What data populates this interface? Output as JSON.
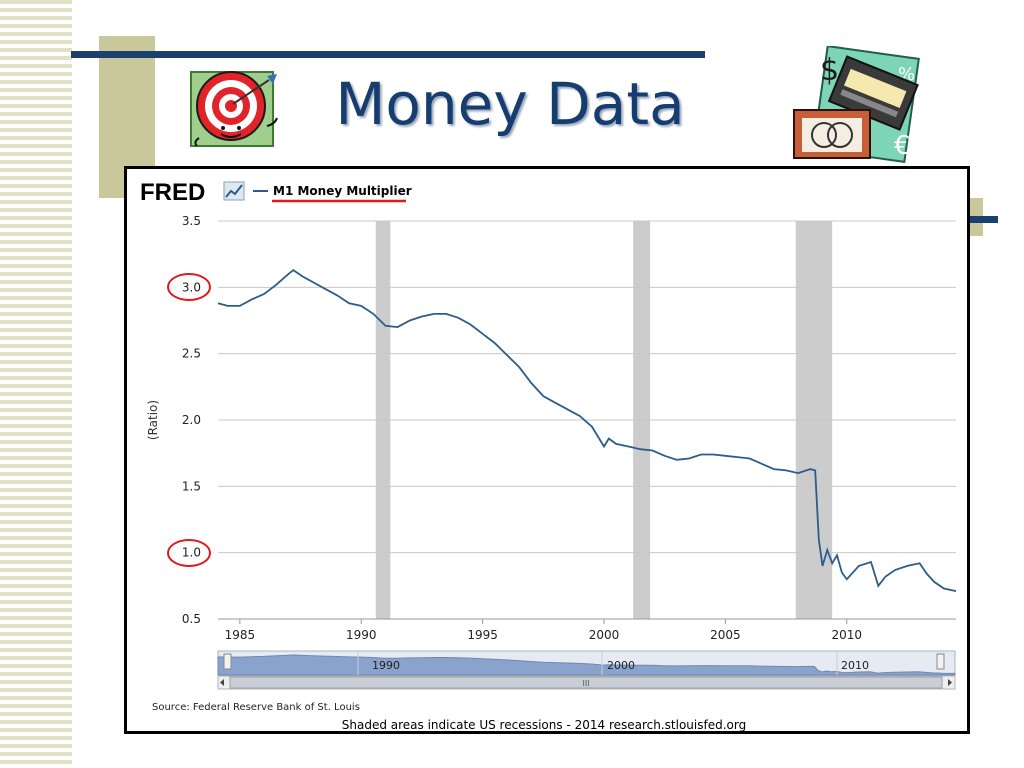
{
  "slide": {
    "title": "Money Data",
    "decorations": [
      "target-clipart-icon",
      "money-cards-clipart-icon"
    ],
    "colors": {
      "title": "#163d6f",
      "accent_rule": "#1b3f6e",
      "olive": "#c9c89b"
    }
  },
  "chart_data": {
    "type": "line",
    "logo": "FRED",
    "legend": [
      "M1 Money Multiplier"
    ],
    "ylabel": "(Ratio)",
    "ylim": [
      0.5,
      3.5
    ],
    "xlim": [
      1984.1,
      2014.5
    ],
    "y_ticks": [
      "3.5",
      "3.0",
      "2.5",
      "2.0",
      "1.5",
      "1.0",
      "0.5"
    ],
    "x_ticks": [
      "1985",
      "1990",
      "1995",
      "2000",
      "2005",
      "2010"
    ],
    "grid": true,
    "line_color": "#2e5c8a",
    "recession_shading": [
      [
        1990.6,
        1991.2
      ],
      [
        2001.2,
        2001.9
      ],
      [
        2007.9,
        2009.4
      ]
    ],
    "series": [
      {
        "x": [
          1984.1,
          1984.5,
          1985.0,
          1985.5,
          1986.0,
          1986.5,
          1987.0,
          1987.2,
          1987.6,
          1988.0,
          1988.5,
          1989.0,
          1989.5,
          1990.0,
          1990.5,
          1991.0,
          1991.5,
          1992.0,
          1992.5,
          1993.0,
          1993.5,
          1994.0,
          1994.5,
          1995.0,
          1995.5,
          1996.0,
          1996.5,
          1997.0,
          1997.5,
          1998.0,
          1998.5,
          1999.0,
          1999.5,
          2000.0,
          2000.2,
          2000.5,
          2001.0,
          2001.5,
          2002.0,
          2002.5,
          2003.0,
          2003.5,
          2004.0,
          2004.5,
          2005.0,
          2005.5,
          2006.0,
          2006.5,
          2007.0,
          2007.5,
          2008.0,
          2008.5,
          2008.7,
          2008.85,
          2009.0,
          2009.2,
          2009.4,
          2009.6,
          2009.8,
          2010.0,
          2010.5,
          2011.0,
          2011.3,
          2011.6,
          2012.0,
          2012.5,
          2013.0,
          2013.3,
          2013.6,
          2014.0,
          2014.5
        ],
        "values": [
          2.88,
          2.86,
          2.86,
          2.91,
          2.95,
          3.02,
          3.1,
          3.13,
          3.08,
          3.04,
          2.99,
          2.94,
          2.88,
          2.86,
          2.8,
          2.71,
          2.7,
          2.75,
          2.78,
          2.8,
          2.8,
          2.77,
          2.72,
          2.65,
          2.58,
          2.49,
          2.4,
          2.28,
          2.18,
          2.13,
          2.08,
          2.03,
          1.95,
          1.8,
          1.86,
          1.82,
          1.8,
          1.78,
          1.77,
          1.73,
          1.7,
          1.71,
          1.74,
          1.74,
          1.73,
          1.72,
          1.71,
          1.67,
          1.63,
          1.62,
          1.6,
          1.63,
          1.62,
          1.1,
          0.9,
          1.02,
          0.92,
          0.98,
          0.85,
          0.8,
          0.9,
          0.93,
          0.75,
          0.82,
          0.87,
          0.9,
          0.92,
          0.84,
          0.78,
          0.73,
          0.71
        ]
      }
    ],
    "navigator": {
      "labels": [
        "1990",
        "2000",
        "2010"
      ],
      "scroll_label": "III"
    },
    "source": "Source: Federal Reserve Bank of St. Louis",
    "footer": "Shaded areas indicate US recessions - 2014 research.stlouisfed.org"
  }
}
